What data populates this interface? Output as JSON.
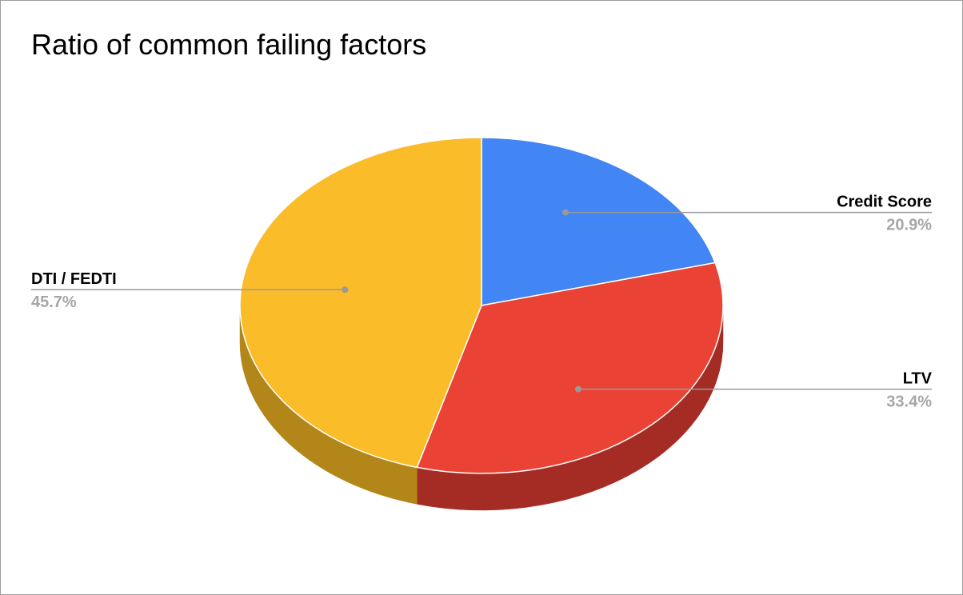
{
  "chart_data": {
    "type": "pie",
    "title": "Ratio of common failing factors",
    "three_d": true,
    "slices": [
      {
        "label": "Credit Score",
        "value": 20.9,
        "percent_label": "20.9%",
        "color": "#4285f4",
        "side_color": "#2f5fad"
      },
      {
        "label": "LTV",
        "value": 33.4,
        "percent_label": "33.4%",
        "color": "#ea4335",
        "side_color": "#a52c24"
      },
      {
        "label": "DTI / FEDTI",
        "value": 45.7,
        "percent_label": "45.7%",
        "color": "#fbbc2a",
        "side_color": "#b38619"
      }
    ],
    "leader_line_color": "#999999"
  }
}
